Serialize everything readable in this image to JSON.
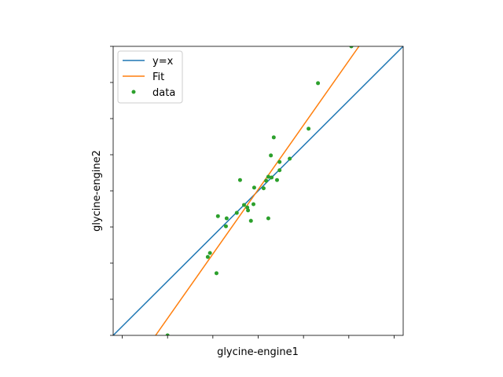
{
  "chart_data": {
    "type": "scatter",
    "xlabel": "glycine-engine1",
    "ylabel": "glycine-engine2",
    "xlim": [
      0,
      8
    ],
    "ylim": [
      0,
      8
    ],
    "xticks": [
      0.25,
      1.5,
      2.75,
      4,
      5.25,
      6.5,
      7.75
    ],
    "yticks": [
      0,
      1,
      2,
      3,
      4,
      5,
      6,
      7,
      8
    ],
    "legend": "upper left",
    "series": [
      {
        "name": "y=x",
        "color": "#1f77b4",
        "kind": "line",
        "x": [
          0,
          8
        ],
        "values": [
          0,
          8
        ]
      },
      {
        "name": "Fit",
        "color": "#ff7f0e",
        "kind": "line",
        "x": [
          1.17,
          6.78
        ],
        "values": [
          0,
          8
        ]
      },
      {
        "name": "data",
        "color": "#2ca02c",
        "kind": "points",
        "x": [
          1.5,
          2.85,
          2.61,
          2.67,
          2.89,
          3.11,
          3.13,
          3.41,
          3.5,
          3.61,
          3.72,
          3.7,
          3.8,
          3.87,
          3.89,
          4.15,
          4.22,
          4.28,
          4.28,
          4.37,
          4.35,
          4.43,
          4.52,
          4.59,
          4.59,
          4.87,
          5.39,
          5.65,
          6.57
        ],
        "values": [
          0,
          1.72,
          2.17,
          2.28,
          3.3,
          3.02,
          3.24,
          3.39,
          4.3,
          3.61,
          3.46,
          3.54,
          3.17,
          3.63,
          4.09,
          4.07,
          4.28,
          3.24,
          4.39,
          4.37,
          4.98,
          5.48,
          4.3,
          4.8,
          4.57,
          4.89,
          5.72,
          6.98,
          8
        ]
      }
    ]
  }
}
